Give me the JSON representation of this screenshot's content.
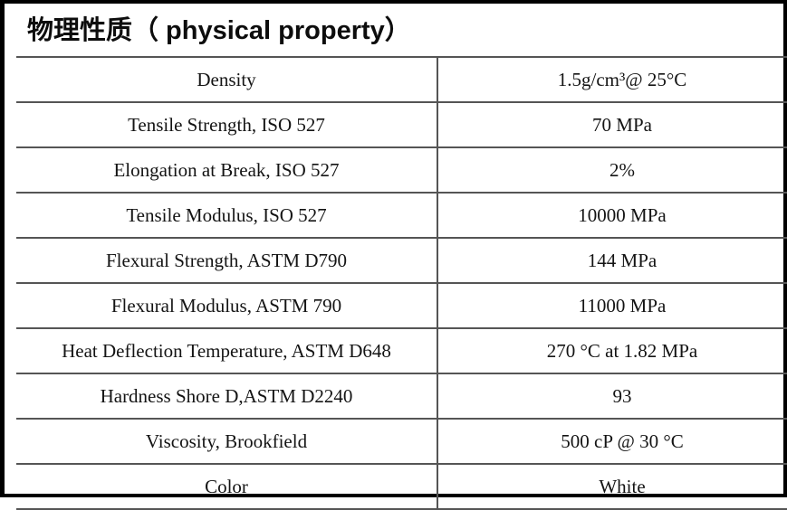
{
  "header": {
    "title": "物理性质（ physical property）"
  },
  "table": {
    "rows": [
      {
        "property": "Density",
        "value": "1.5g/cm³@ 25°C"
      },
      {
        "property": "Tensile Strength, ISO 527",
        "value": "70 MPa"
      },
      {
        "property": "Elongation at Break, ISO 527",
        "value": "2%"
      },
      {
        "property": "Tensile Modulus, ISO 527",
        "value": "10000 MPa"
      },
      {
        "property": "Flexural Strength, ASTM D790",
        "value": "144 MPa"
      },
      {
        "property": "Flexural Modulus, ASTM 790",
        "value": "11000 MPa"
      },
      {
        "property": "Heat Deflection Temperature, ASTM D648",
        "value": "270 °C at 1.82 MPa"
      },
      {
        "property": "Hardness Shore D,ASTM D2240",
        "value": "93"
      },
      {
        "property": "Viscosity, Brookfield",
        "value": "500 cP @ 30 °C"
      },
      {
        "property": "Color",
        "value": "White"
      }
    ]
  },
  "colors": {
    "frame_border": "#000000",
    "grid_line": "#555555",
    "text": "#141414"
  }
}
